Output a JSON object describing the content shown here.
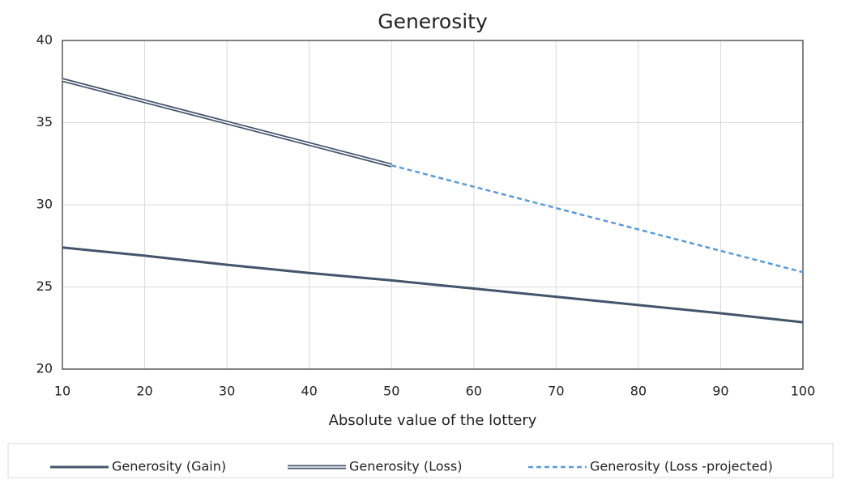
{
  "chart_data": {
    "type": "line",
    "title": "Generosity",
    "x_label": "Absolute value of the lottery",
    "x": [
      10,
      20,
      30,
      40,
      50,
      60,
      70,
      80,
      90,
      100
    ],
    "series": [
      {
        "name": "Generosity (Gain)",
        "color": "#44546a",
        "style": "solid",
        "values": [
          27.4,
          26.9,
          26.35,
          25.85,
          25.4,
          24.9,
          24.4,
          23.9,
          23.4,
          22.85
        ]
      },
      {
        "name": "Generosity (Loss)",
        "color": "#44546a",
        "style": "double",
        "values": [
          37.6,
          36.3,
          35.0,
          33.7,
          32.4,
          null,
          null,
          null,
          null,
          null
        ]
      },
      {
        "name": "Generosity (Loss -projected)",
        "color": "#5b9bd5",
        "style": "dashed",
        "values": [
          null,
          null,
          null,
          null,
          32.4,
          31.1,
          29.8,
          28.5,
          27.2,
          25.9
        ]
      }
    ],
    "xlim": [
      10,
      100
    ],
    "xticks": [
      10,
      20,
      30,
      40,
      50,
      60,
      70,
      80,
      90,
      100
    ],
    "ylim": [
      20,
      40
    ],
    "yticks": [
      20,
      25,
      30,
      35,
      40
    ],
    "grid": true,
    "legend": "bottom"
  }
}
